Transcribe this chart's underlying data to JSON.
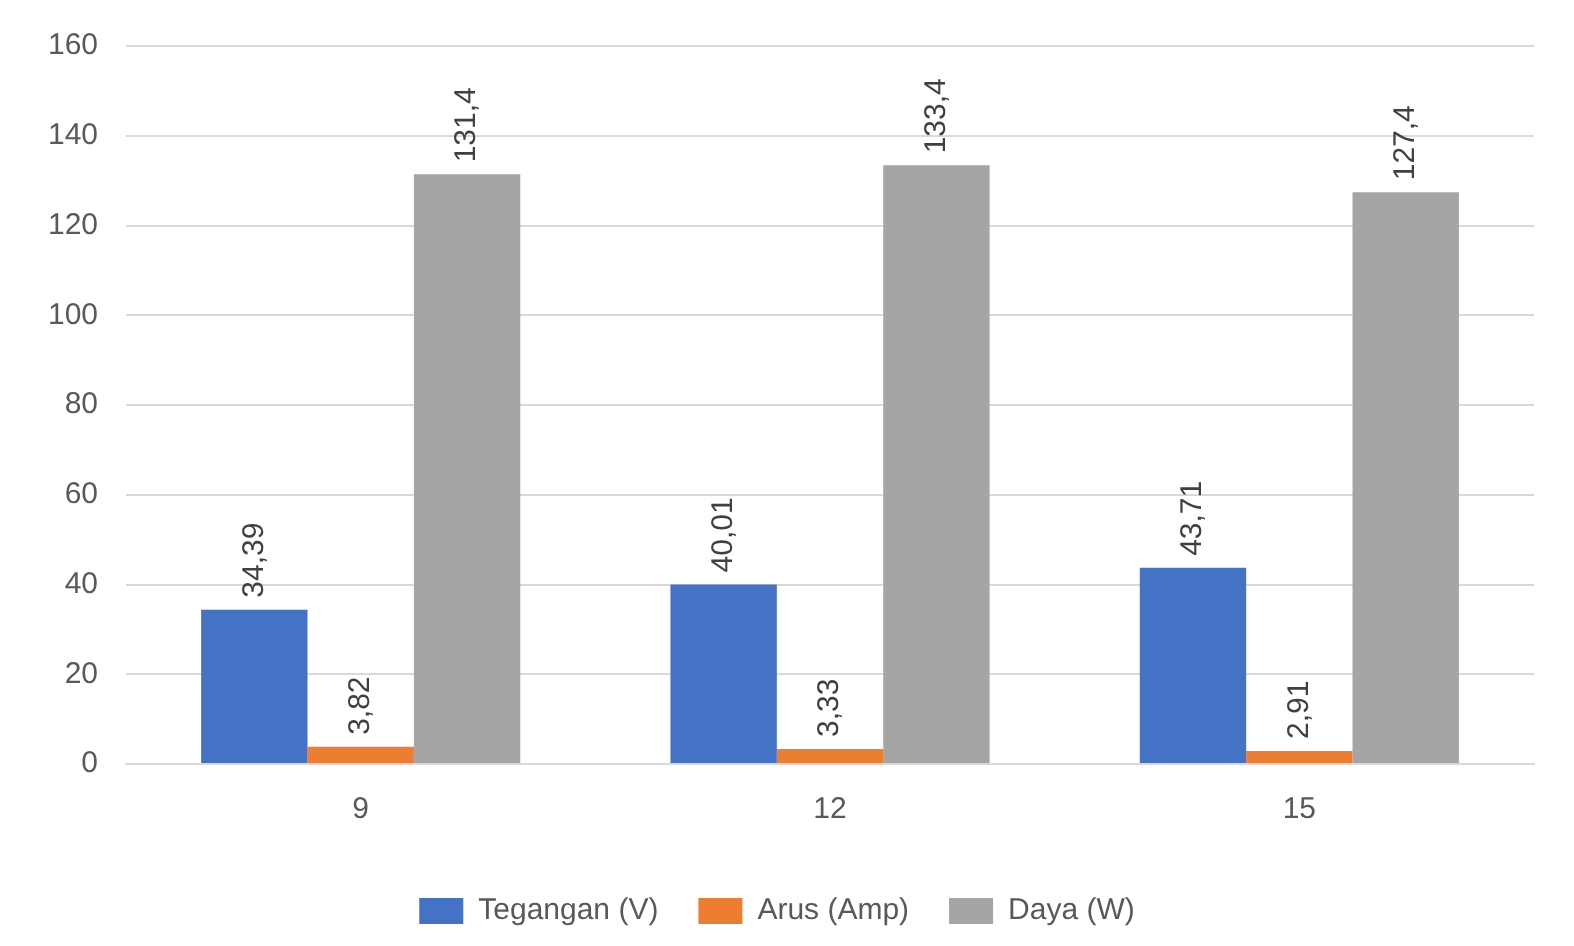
{
  "chart_data": {
    "type": "bar",
    "categories": [
      "9",
      "12",
      "15"
    ],
    "series": [
      {
        "name": "Tegangan (V)",
        "color": "#4472c4",
        "values": [
          34.39,
          40.01,
          43.71
        ],
        "value_labels": [
          "34,39",
          "40,01",
          "43,71"
        ]
      },
      {
        "name": "Arus (Amp)",
        "color": "#ed7d31",
        "values": [
          3.82,
          3.33,
          2.91
        ],
        "value_labels": [
          "3,82",
          "3,33",
          "2,91"
        ]
      },
      {
        "name": "Daya (W)",
        "color": "#a5a5a5",
        "values": [
          131.4,
          133.4,
          127.4
        ],
        "value_labels": [
          "131,4",
          "133,4",
          "127,4"
        ]
      }
    ],
    "ylim": [
      0,
      160
    ],
    "yticks": [
      0,
      20,
      40,
      60,
      80,
      100,
      120,
      140,
      160
    ],
    "grid": "y",
    "legend": "bottom"
  }
}
